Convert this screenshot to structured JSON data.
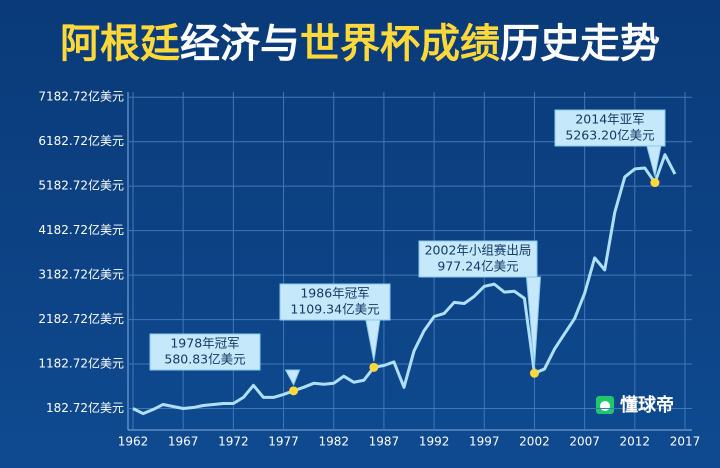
{
  "chart_data": {
    "type": "line",
    "title": [
      "阿根廷",
      "经济与",
      "世界杯成绩",
      "历史走势"
    ],
    "title_colors": [
      "#ffd83a",
      "#ffffff",
      "#ffd83a",
      "#ffffff"
    ],
    "x": [
      1962,
      1963,
      1964,
      1965,
      1966,
      1967,
      1968,
      1969,
      1970,
      1971,
      1972,
      1973,
      1974,
      1975,
      1976,
      1977,
      1978,
      1979,
      1980,
      1981,
      1982,
      1983,
      1984,
      1985,
      1986,
      1987,
      1988,
      1989,
      1990,
      1991,
      1992,
      1993,
      1994,
      1995,
      1996,
      1997,
      1998,
      1999,
      2000,
      2001,
      2002,
      2003,
      2004,
      2005,
      2006,
      2007,
      2008,
      2009,
      2010,
      2011,
      2012,
      2013,
      2014,
      2015,
      2016
    ],
    "series": [
      {
        "color": "#aee0fa",
        "values": [
          183,
          69,
          160,
          274,
          228,
          183,
          205,
          251,
          274,
          296,
          296,
          433,
          705,
          433,
          433,
          500,
          580.83,
          660,
          750,
          728,
          750,
          910,
          773,
          819,
          1109.34,
          1150,
          1230,
          660,
          1478,
          1932,
          2250,
          2320,
          2570,
          2545,
          2705,
          2930,
          2980,
          2800,
          2820,
          2660,
          977.24,
          1070,
          1520,
          1865,
          2205,
          2775,
          3570,
          3300,
          4590,
          5390,
          5570,
          5590,
          5263.2,
          5890,
          5455
        ]
      }
    ],
    "xlim": [
      1962,
      2017
    ],
    "xticks": [
      1962,
      1967,
      1972,
      1977,
      1982,
      1987,
      1992,
      1997,
      2002,
      2007,
      2012,
      2017
    ],
    "ylim": [
      -300,
      7300
    ],
    "yticks": [
      {
        "value": 182.72,
        "label": "182.72亿美元"
      },
      {
        "value": 1182.72,
        "label": "1182.72亿美元"
      },
      {
        "value": 2182.72,
        "label": "2182.72亿美元"
      },
      {
        "value": 3182.72,
        "label": "3182.72亿美元"
      },
      {
        "value": 4182.72,
        "label": "4182.72亿美元"
      },
      {
        "value": 5182.72,
        "label": "5182.72亿美元"
      },
      {
        "value": 6182.72,
        "label": "6182.72亿美元"
      },
      {
        "value": 7182.72,
        "label": "7182.72亿美元"
      }
    ],
    "grid": true,
    "annotations": [
      {
        "x": 1978,
        "lines": [
          "1978年冠军",
          "580.83亿美元"
        ]
      },
      {
        "x": 1986,
        "lines": [
          "1986年冠军",
          "1109.34亿美元"
        ]
      },
      {
        "x": 2002,
        "lines": [
          "2002年小组赛出局",
          "977.24亿美元"
        ]
      },
      {
        "x": 2014,
        "lines": [
          "2014年亚军",
          "5263.20亿美元"
        ]
      }
    ],
    "marker_color": "#ffd83a",
    "watermark": "懂球帝"
  }
}
